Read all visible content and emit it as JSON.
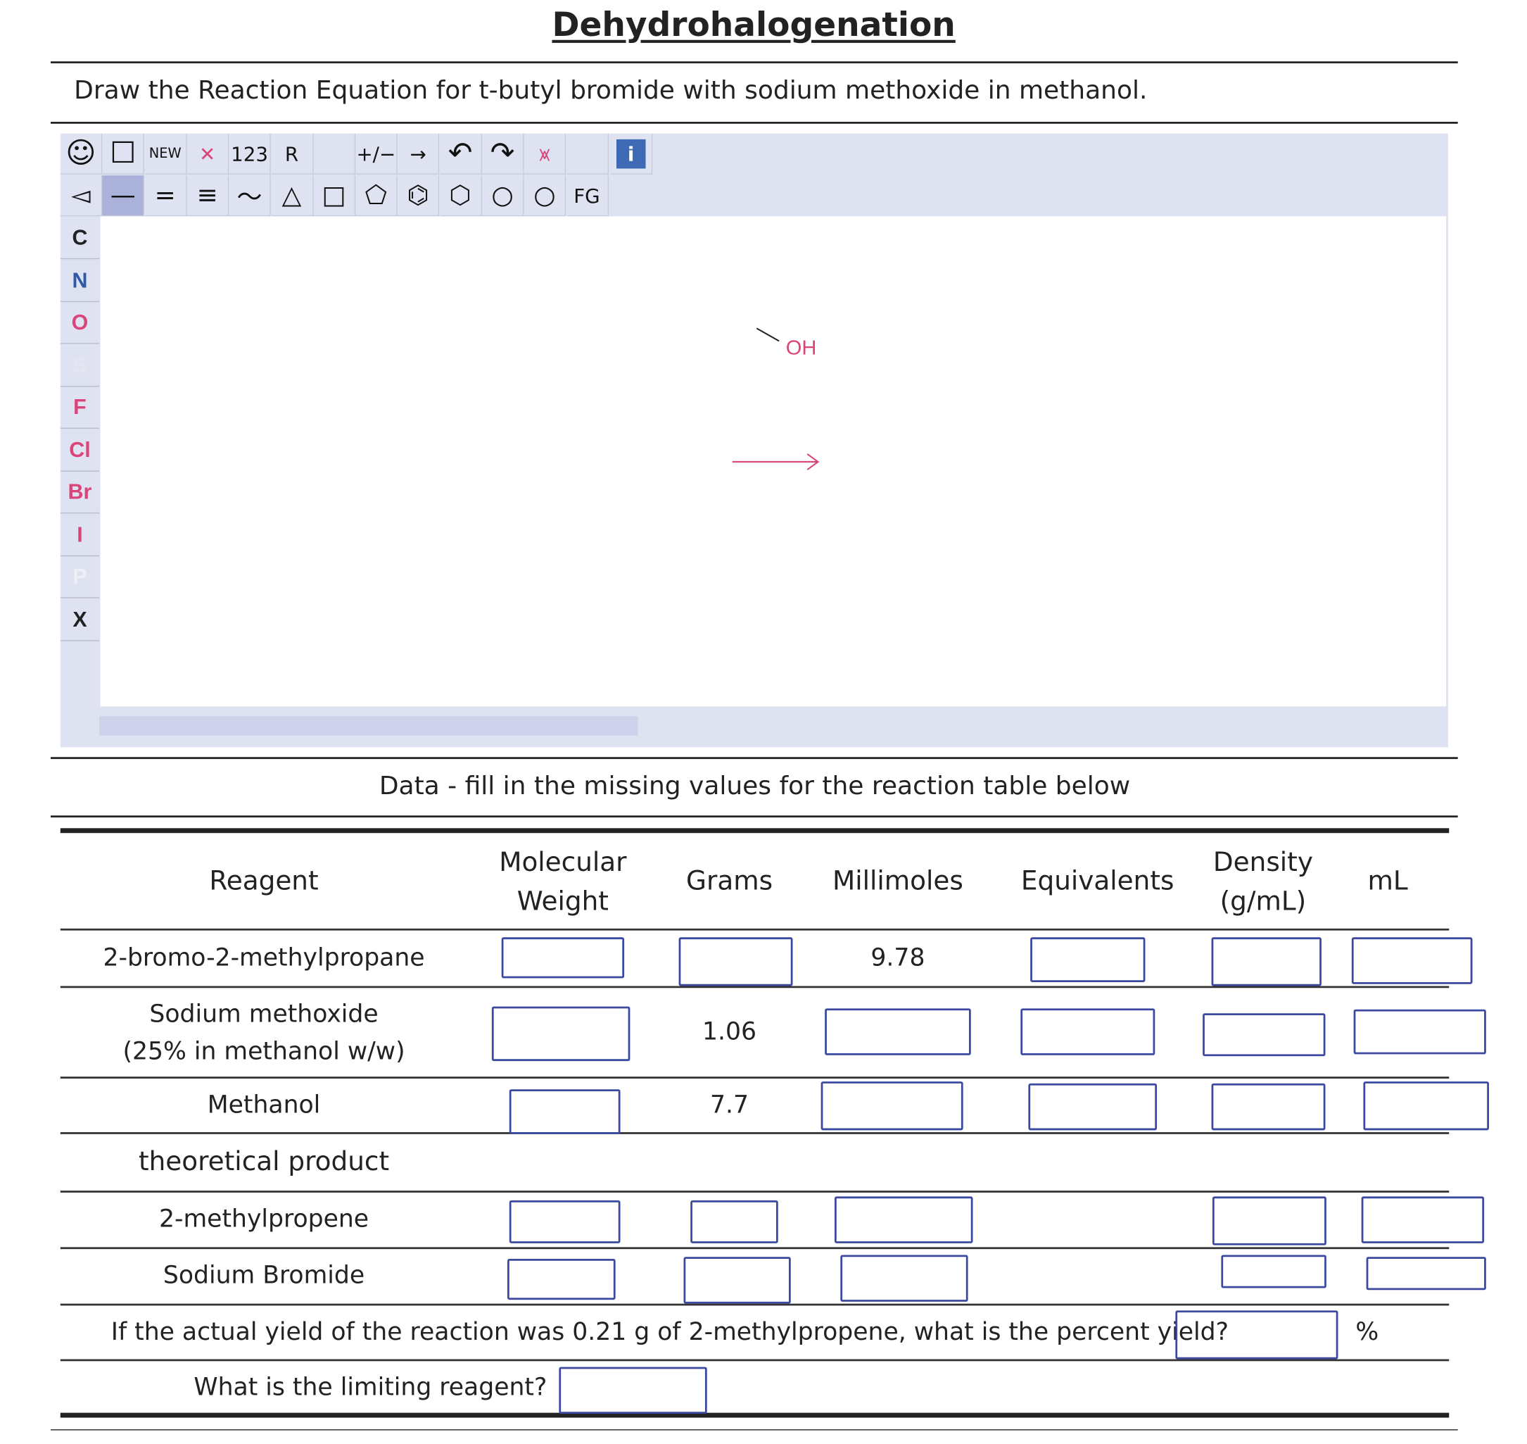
{
  "title": "Dehydrohalogenation",
  "instruction": "Draw the Reaction Equation for t-butyl bromide with sodium methoxide in methanol.",
  "editor": {
    "toolbar_row1": [
      {
        "icon": "smiley-icon",
        "label": "☺"
      },
      {
        "icon": "select-rectangle-icon",
        "label": "☐"
      },
      {
        "icon": "new-icon",
        "label": "NEW"
      },
      {
        "icon": "delete-icon",
        "label": "✕"
      },
      {
        "icon": "atom-numbers-icon",
        "label": "123"
      },
      {
        "icon": "r-group-icon",
        "label": "R"
      },
      {
        "icon": "blank",
        "label": ""
      },
      {
        "icon": "charge-icon",
        "label": "+∕−"
      },
      {
        "icon": "reaction-arrow-icon",
        "label": "→"
      },
      {
        "icon": "undo-icon",
        "label": "↶"
      },
      {
        "icon": "redo-icon",
        "label": "↷"
      },
      {
        "icon": "clear-lone-pairs-icon",
        "label": "⩙"
      },
      {
        "icon": "blank",
        "label": ""
      },
      {
        "icon": "info-icon",
        "label": "i"
      }
    ],
    "toolbar_row2": [
      {
        "icon": "wedge-bond-icon",
        "label": "◅"
      },
      {
        "icon": "single-bond-icon",
        "label": "—"
      },
      {
        "icon": "double-bond-icon",
        "label": "="
      },
      {
        "icon": "triple-bond-icon",
        "label": "≡"
      },
      {
        "icon": "chain-icon",
        "label": "〜"
      },
      {
        "icon": "cyclopropane-icon",
        "label": "△"
      },
      {
        "icon": "cyclobutane-icon",
        "label": "□"
      },
      {
        "icon": "cyclopentane-icon",
        "label": "⬠"
      },
      {
        "icon": "benzene-icon",
        "label": "⌬"
      },
      {
        "icon": "cyclohexane-icon",
        "label": "⬡"
      },
      {
        "icon": "cycloheptane-icon",
        "label": "○"
      },
      {
        "icon": "cyclooctane-icon",
        "label": "○"
      },
      {
        "icon": "functional-group-icon",
        "label": "FG"
      }
    ],
    "elements": [
      {
        "label": "C",
        "color": "#222222"
      },
      {
        "label": "N",
        "color": "#2f5aa8"
      },
      {
        "label": "O",
        "color": "#d9447a"
      },
      {
        "label": "S",
        "color": "#e4e6ef"
      },
      {
        "label": "F",
        "color": "#d9447a"
      },
      {
        "label": "Cl",
        "color": "#d9447a"
      },
      {
        "label": "Br",
        "color": "#d9447a"
      },
      {
        "label": "I",
        "color": "#d9447a"
      },
      {
        "label": "P",
        "color": "#eef0f6"
      },
      {
        "label": "X",
        "color": "#222222"
      }
    ],
    "canvas_label_oh": "OH",
    "accent_pink": "#d9447a",
    "info_blue": "#3d69b5"
  },
  "data_heading": "Data - fill in the missing values for the reaction table below",
  "table": {
    "headers": [
      "Reagent",
      "Molecular\nWeight",
      "Grams",
      "Millimoles",
      "Equivalents",
      "Density\n(g/mL)",
      "mL"
    ],
    "rows": [
      {
        "reagent": "2-bromo-2-methylpropane",
        "values": [
          "",
          "",
          "9.78",
          "",
          "",
          ""
        ]
      },
      {
        "reagent": "Sodium methoxide\n(25% in methanol w/w)",
        "values": [
          "",
          "1.06",
          "",
          "",
          "",
          ""
        ]
      },
      {
        "reagent": "Methanol",
        "values": [
          "",
          "7.7",
          "",
          "",
          "",
          ""
        ]
      }
    ],
    "product_heading": "theoretical product",
    "product_rows": [
      {
        "reagent": "2-methylpropene"
      },
      {
        "reagent": "Sodium Bromide"
      }
    ],
    "yield_question": "If the actual yield of the reaction was 0.21 g of 2-methylpropene, what is the percent yield?",
    "yield_unit": "%",
    "limiting_question": "What is the limiting reagent?"
  }
}
